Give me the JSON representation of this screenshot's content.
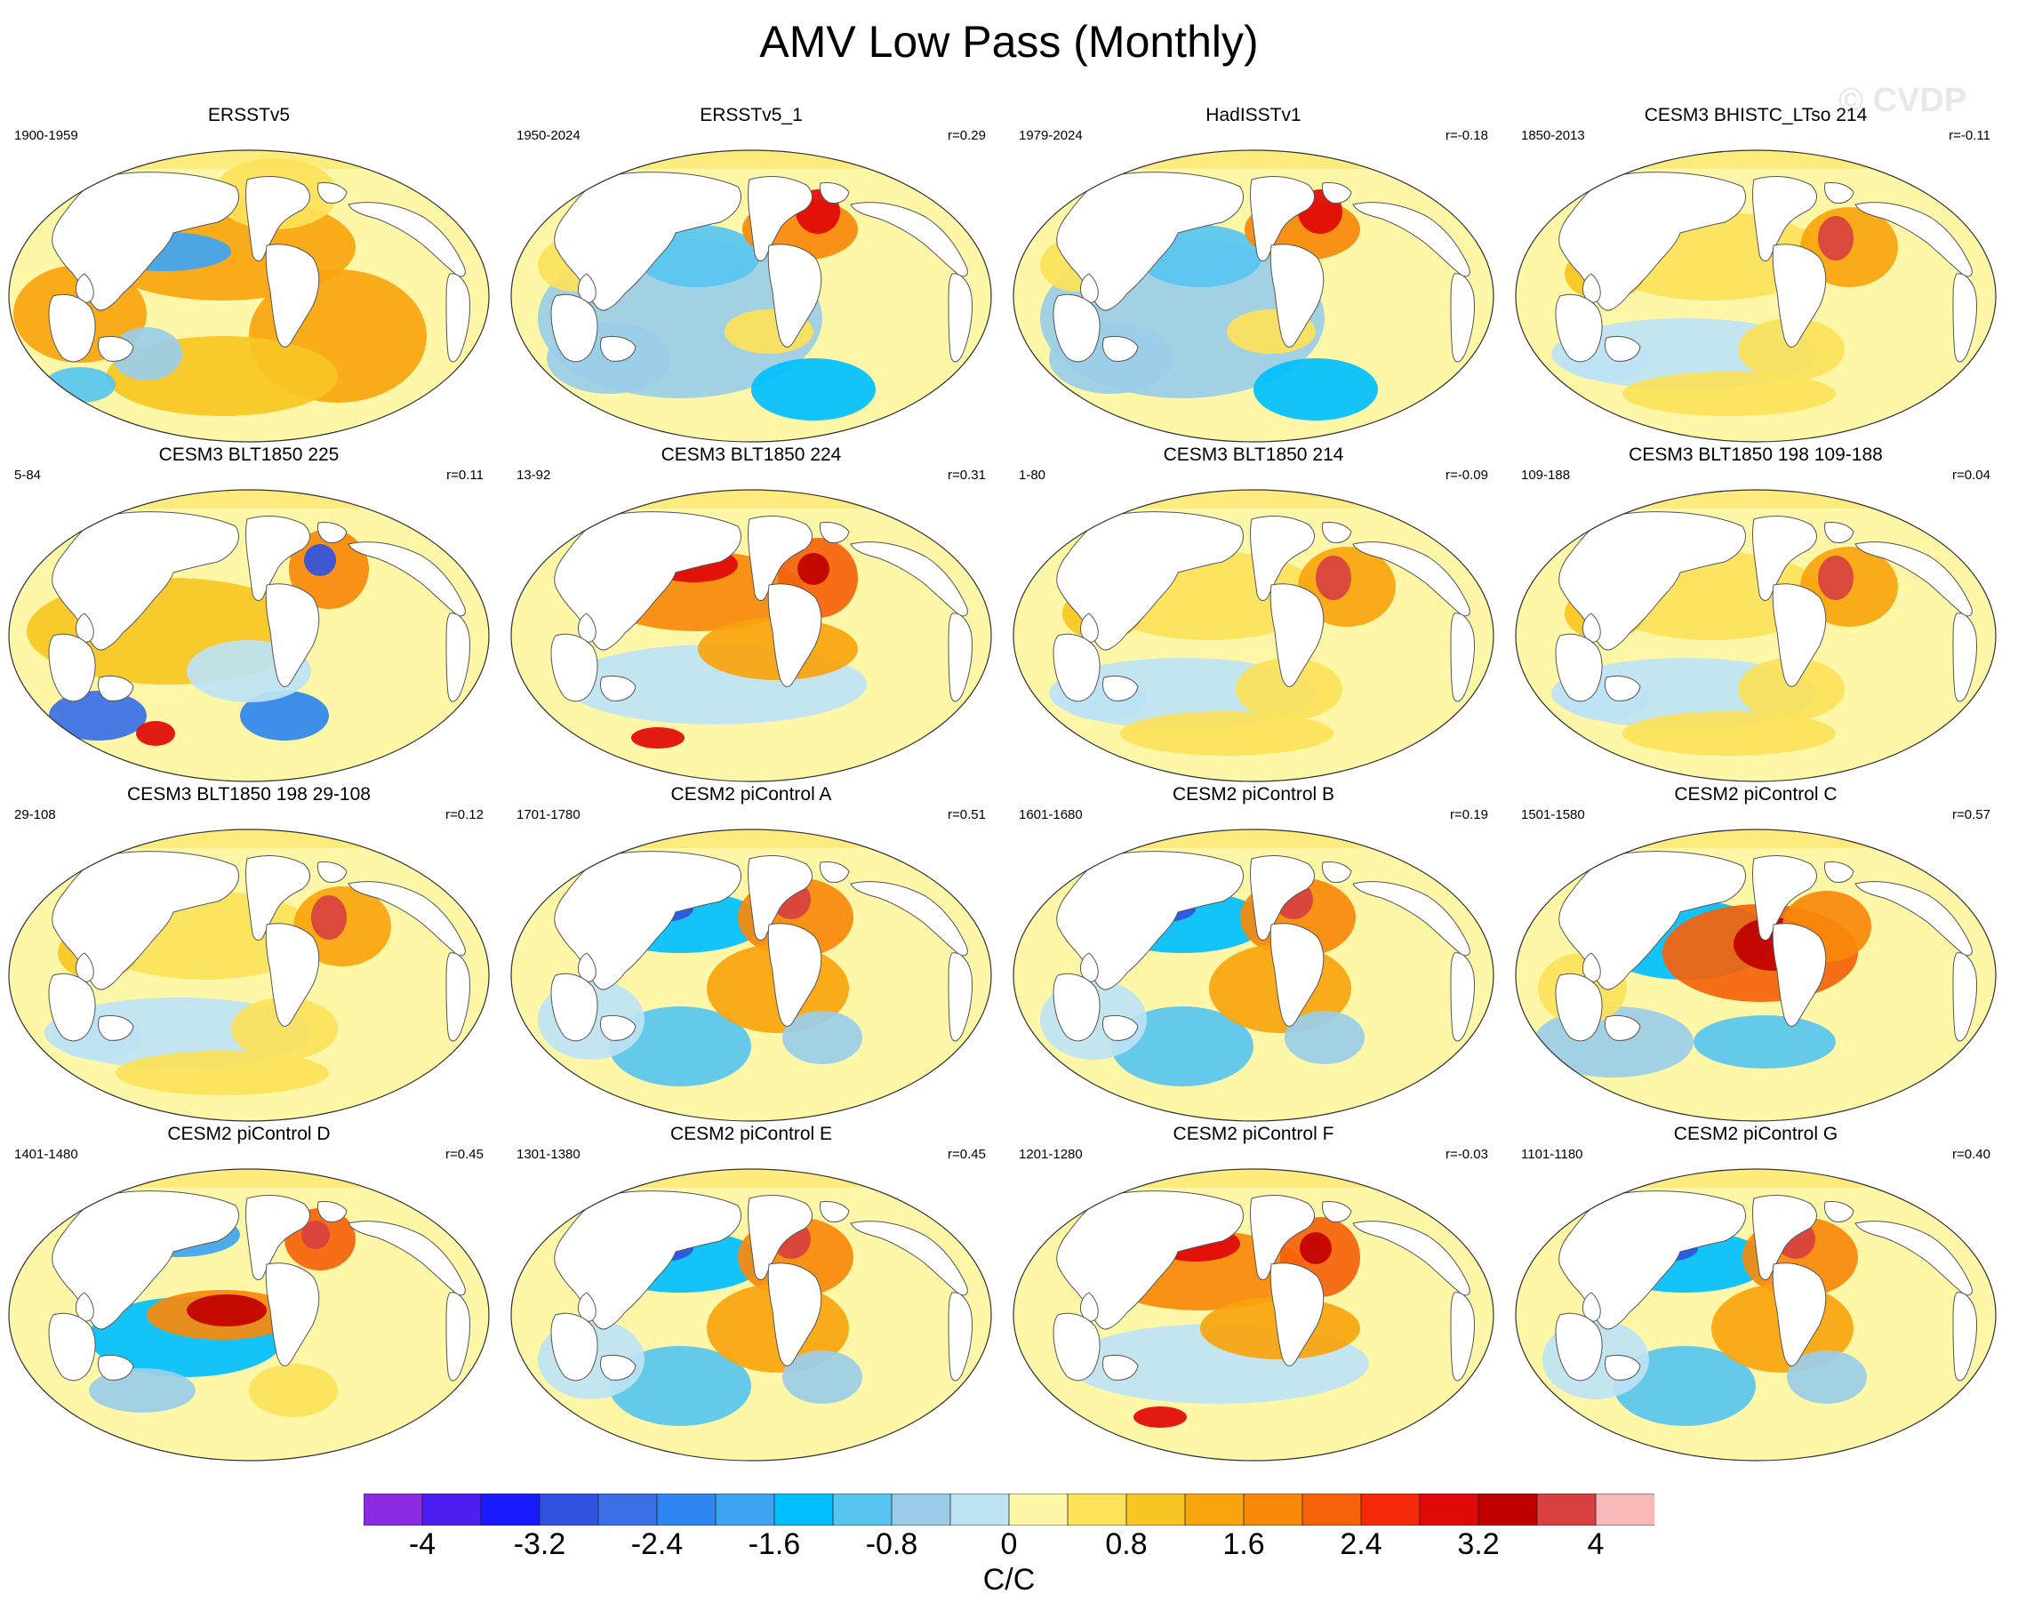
{
  "title": "AMV Low Pass (Monthly)",
  "watermark": "© CVDP",
  "colors": {
    "land": "#ffffff",
    "coast": "#555555",
    "scale": [
      "#8a2be2",
      "#4b1df0",
      "#1a1aff",
      "#2f52e0",
      "#3a6fe6",
      "#2f86f0",
      "#3ea4f2",
      "#00bfff",
      "#58c4f0",
      "#9acde9",
      "#bde3f5",
      "#fff7a8",
      "#fde25a",
      "#f9c522",
      "#f8a40d",
      "#f7880a",
      "#f5620a",
      "#f5280a",
      "#e10808",
      "#c00000",
      "#d84040",
      "#f8b8b8"
    ]
  },
  "panels": [
    {
      "title": "ERSSTv5",
      "years": "1900-1959",
      "corr": "",
      "pattern": "A"
    },
    {
      "title": "ERSSTv5_1",
      "years": "1950-2024",
      "corr": "r=0.29",
      "pattern": "B"
    },
    {
      "title": "HadISSTv1",
      "years": "1979-2024",
      "corr": "r=-0.18",
      "pattern": "B"
    },
    {
      "title": "CESM3 BHISTC_LTso 214",
      "years": "1850-2013",
      "corr": "r=-0.11",
      "pattern": "C"
    },
    {
      "title": "CESM3 BLT1850 225",
      "years": "5-84",
      "corr": "r=0.11",
      "pattern": "D"
    },
    {
      "title": "CESM3 BLT1850 224",
      "years": "13-92",
      "corr": "r=0.31",
      "pattern": "E"
    },
    {
      "title": "CESM3 BLT1850 214",
      "years": "1-80",
      "corr": "r=-0.09",
      "pattern": "C"
    },
    {
      "title": "CESM3 BLT1850 198 109-188",
      "years": "109-188",
      "corr": "r=0.04",
      "pattern": "C"
    },
    {
      "title": "CESM3 BLT1850 198 29-108",
      "years": "29-108",
      "corr": "r=0.12",
      "pattern": "C"
    },
    {
      "title": "CESM2 piControl A",
      "years": "1701-1780",
      "corr": "r=0.51",
      "pattern": "F"
    },
    {
      "title": "CESM2 piControl B",
      "years": "1601-1680",
      "corr": "r=0.19",
      "pattern": "F"
    },
    {
      "title": "CESM2 piControl C",
      "years": "1501-1580",
      "corr": "r=0.57",
      "pattern": "G"
    },
    {
      "title": "CESM2 piControl D",
      "years": "1401-1480",
      "corr": "r=0.45",
      "pattern": "H"
    },
    {
      "title": "CESM2 piControl E",
      "years": "1301-1380",
      "corr": "r=0.45",
      "pattern": "F"
    },
    {
      "title": "CESM2 piControl F",
      "years": "1201-1280",
      "corr": "r=-0.03",
      "pattern": "E"
    },
    {
      "title": "CESM2 piControl G",
      "years": "1101-1180",
      "corr": "r=0.40",
      "pattern": "F"
    }
  ],
  "colorbar": {
    "labels": [
      "-4",
      "-3.2",
      "-2.4",
      "-1.6",
      "-0.8",
      "0",
      "0.8",
      "1.6",
      "2.4",
      "3.2",
      "4"
    ],
    "units": "C/C"
  }
}
